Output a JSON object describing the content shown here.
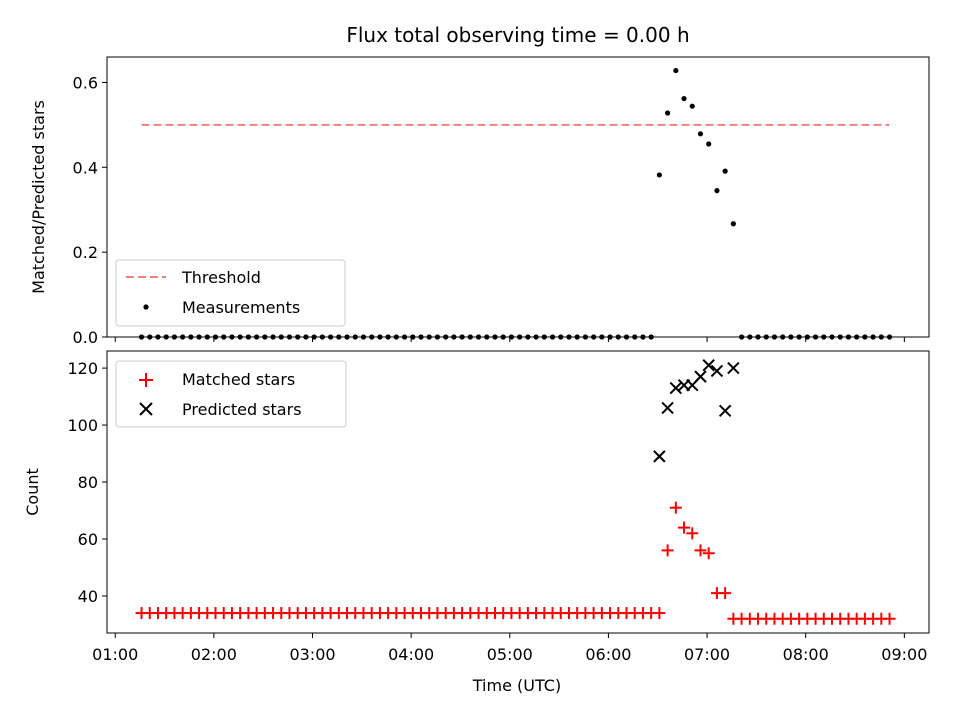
{
  "chart_data": {
    "type": "scatter",
    "title": "Flux total observing time = 0.00 h",
    "xlabel": "Time (UTC)",
    "x_axis": {
      "unit": "hours UTC",
      "range": [
        "00:55",
        "09:15"
      ],
      "tick_labels": [
        "01:00",
        "02:00",
        "03:00",
        "04:00",
        "05:00",
        "06:00",
        "07:00",
        "08:00",
        "09:00"
      ],
      "tick_values": [
        1,
        2,
        3,
        4,
        5,
        6,
        7,
        8,
        9
      ]
    },
    "times": [
      "01:16",
      "01:21",
      "01:26",
      "01:31",
      "01:36",
      "01:41",
      "01:46",
      "01:51",
      "01:56",
      "02:01",
      "02:06",
      "02:11",
      "02:16",
      "02:21",
      "02:26",
      "02:31",
      "02:36",
      "02:41",
      "02:46",
      "02:51",
      "02:56",
      "03:01",
      "03:06",
      "03:11",
      "03:16",
      "03:21",
      "03:26",
      "03:31",
      "03:36",
      "03:41",
      "03:46",
      "03:51",
      "03:56",
      "04:01",
      "04:06",
      "04:11",
      "04:16",
      "04:21",
      "04:26",
      "04:31",
      "04:36",
      "04:41",
      "04:46",
      "04:51",
      "04:56",
      "05:01",
      "05:06",
      "05:11",
      "05:16",
      "05:21",
      "05:26",
      "05:31",
      "05:36",
      "05:41",
      "05:46",
      "05:51",
      "05:56",
      "06:01",
      "06:06",
      "06:11",
      "06:16",
      "06:21",
      "06:26",
      "06:31",
      "06:36",
      "06:41",
      "06:46",
      "06:51",
      "06:56",
      "07:01",
      "07:06",
      "07:11",
      "07:16",
      "07:21",
      "07:26",
      "07:31",
      "07:36",
      "07:41",
      "07:46",
      "07:51",
      "07:56",
      "08:01",
      "08:06",
      "08:11",
      "08:16",
      "08:21",
      "08:26",
      "08:31",
      "08:36",
      "08:41",
      "08:46",
      "08:51"
    ],
    "top": {
      "ylabel": "Matched/Predicted stars",
      "ylim": [
        0,
        0.66
      ],
      "yticks": [
        "0.0",
        "0.2",
        "0.4",
        "0.6"
      ],
      "ytick_values": [
        0.0,
        0.2,
        0.4,
        0.6
      ],
      "legend_position": "lower-left",
      "threshold": {
        "name": "Threshold",
        "value": 0.5,
        "x_start": "01:16",
        "x_end": "08:51",
        "color": "#f08080"
      },
      "measurements": {
        "name": "Measurements",
        "color": "#000000",
        "points": [
          {
            "t": "06:31",
            "y": 0.382
          },
          {
            "t": "06:36",
            "y": 0.528
          },
          {
            "t": "06:41",
            "y": 0.628
          },
          {
            "t": "06:46",
            "y": 0.562
          },
          {
            "t": "06:51",
            "y": 0.544
          },
          {
            "t": "06:56",
            "y": 0.479
          },
          {
            "t": "07:01",
            "y": 0.455
          },
          {
            "t": "07:06",
            "y": 0.345
          },
          {
            "t": "07:11",
            "y": 0.391
          },
          {
            "t": "07:16",
            "y": 0.267
          }
        ],
        "zero_ranges": [
          [
            "01:16",
            "06:26"
          ],
          [
            "07:21",
            "08:51"
          ]
        ]
      }
    },
    "bottom": {
      "ylabel": "Count",
      "ylim": [
        27,
        126
      ],
      "yticks": [
        "40",
        "60",
        "80",
        "100",
        "120"
      ],
      "ytick_values": [
        40,
        60,
        80,
        100,
        120
      ],
      "legend_position": "upper-left",
      "series": [
        {
          "name": "Matched stars",
          "marker": "plus",
          "color": "#ff0000",
          "baseline_ranges": [
            {
              "from": "01:16",
              "to": "06:26",
              "value": 34
            },
            {
              "from": "07:21",
              "to": "08:51",
              "value": 32
            }
          ],
          "points": [
            {
              "t": "06:31",
              "y": 34
            },
            {
              "t": "06:36",
              "y": 56
            },
            {
              "t": "06:41",
              "y": 71
            },
            {
              "t": "06:46",
              "y": 64
            },
            {
              "t": "06:51",
              "y": 62
            },
            {
              "t": "06:56",
              "y": 56
            },
            {
              "t": "07:01",
              "y": 55
            },
            {
              "t": "07:06",
              "y": 41
            },
            {
              "t": "07:11",
              "y": 41
            },
            {
              "t": "07:16",
              "y": 32
            }
          ]
        },
        {
          "name": "Predicted stars",
          "marker": "x",
          "color": "#000000",
          "points": [
            {
              "t": "06:31",
              "y": 89
            },
            {
              "t": "06:36",
              "y": 106
            },
            {
              "t": "06:41",
              "y": 113
            },
            {
              "t": "06:46",
              "y": 114
            },
            {
              "t": "06:51",
              "y": 114
            },
            {
              "t": "06:56",
              "y": 117
            },
            {
              "t": "07:01",
              "y": 121
            },
            {
              "t": "07:06",
              "y": 119
            },
            {
              "t": "07:11",
              "y": 105
            },
            {
              "t": "07:16",
              "y": 120
            }
          ]
        }
      ]
    }
  }
}
